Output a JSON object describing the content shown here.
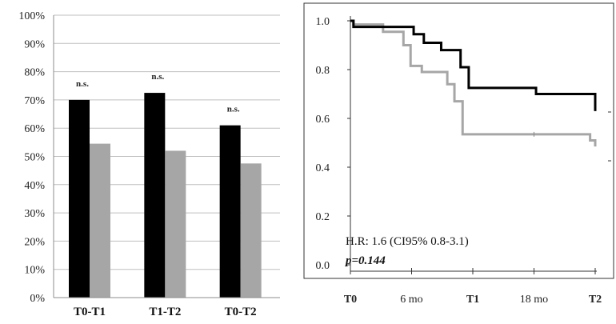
{
  "chart_data": [
    {
      "type": "bar",
      "categories": [
        "T0-T1",
        "T1-T2",
        "T0-T2"
      ],
      "series": [
        {
          "color": "#000000",
          "values": [
            70,
            72.5,
            61
          ]
        },
        {
          "color": "#a6a6a6",
          "values": [
            54.5,
            52,
            47.5
          ]
        }
      ],
      "ylim": [
        0,
        100
      ],
      "yticks": [
        "0%",
        "10%",
        "20%",
        "30%",
        "40%",
        "50%",
        "60%",
        "70%",
        "80%",
        "90%",
        "100%"
      ],
      "annotations": [
        "n.s.",
        "n.s.",
        "n.s."
      ],
      "grid": true
    },
    {
      "type": "line",
      "xticks": [
        "T0",
        "6 mo",
        "T1",
        "18 mo",
        "T2"
      ],
      "xticks_months": [
        0,
        6,
        12,
        18,
        24
      ],
      "yticks": [
        "0.0",
        "0.2",
        "0.4",
        "0.6",
        "0.8",
        "1.0"
      ],
      "ylim": [
        0,
        1.0
      ],
      "xlim": [
        0,
        24
      ],
      "step": true,
      "series": [
        {
          "color": "#000000",
          "x": [
            0,
            0.3,
            6.2,
            7.2,
            8.9,
            10.8,
            11.6,
            18.2,
            24
          ],
          "y": [
            1.0,
            0.975,
            0.945,
            0.91,
            0.88,
            0.81,
            0.725,
            0.7,
            0.63
          ]
        },
        {
          "color": "#a6a6a6",
          "x": [
            0,
            0.3,
            3.2,
            5.2,
            5.9,
            7.0,
            9.5,
            10.2,
            11.0,
            23.5,
            24
          ],
          "y": [
            1.0,
            0.985,
            0.955,
            0.9,
            0.815,
            0.79,
            0.74,
            0.67,
            0.535,
            0.51,
            0.485
          ]
        }
      ],
      "censor_marks": [
        {
          "x": 18,
          "y": 0.535
        }
      ],
      "annotations": {
        "hr": "H.R:  1.6 (CI95% 0.8-3.1)",
        "p": "p=0.144"
      }
    }
  ]
}
